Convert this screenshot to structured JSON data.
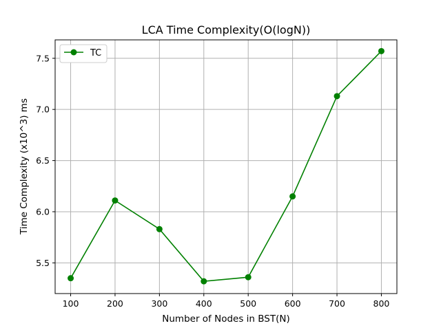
{
  "chart_data": {
    "type": "line",
    "title": "LCA Time Complexity(O(logN))",
    "xlabel": "Number of Nodes in BST(N)",
    "ylabel": "Time Complexity (x10^3) ms",
    "x": [
      100,
      200,
      300,
      400,
      500,
      600,
      700,
      800
    ],
    "xticks": [
      100,
      200,
      300,
      400,
      500,
      600,
      700,
      800
    ],
    "yticks": [
      5.5,
      6.0,
      6.5,
      7.0,
      7.5
    ],
    "ytick_labels": [
      "5.5",
      "6.0",
      "6.5",
      "7.0",
      "7.5"
    ],
    "xlim": [
      65,
      835
    ],
    "ylim": [
      5.2,
      7.68
    ],
    "grid": true,
    "legend_position": "top-left",
    "series": [
      {
        "name": "TC",
        "color": "#008000",
        "marker": "circle",
        "values": [
          5.35,
          6.11,
          5.83,
          5.32,
          5.36,
          6.15,
          7.13,
          7.57
        ]
      }
    ]
  }
}
